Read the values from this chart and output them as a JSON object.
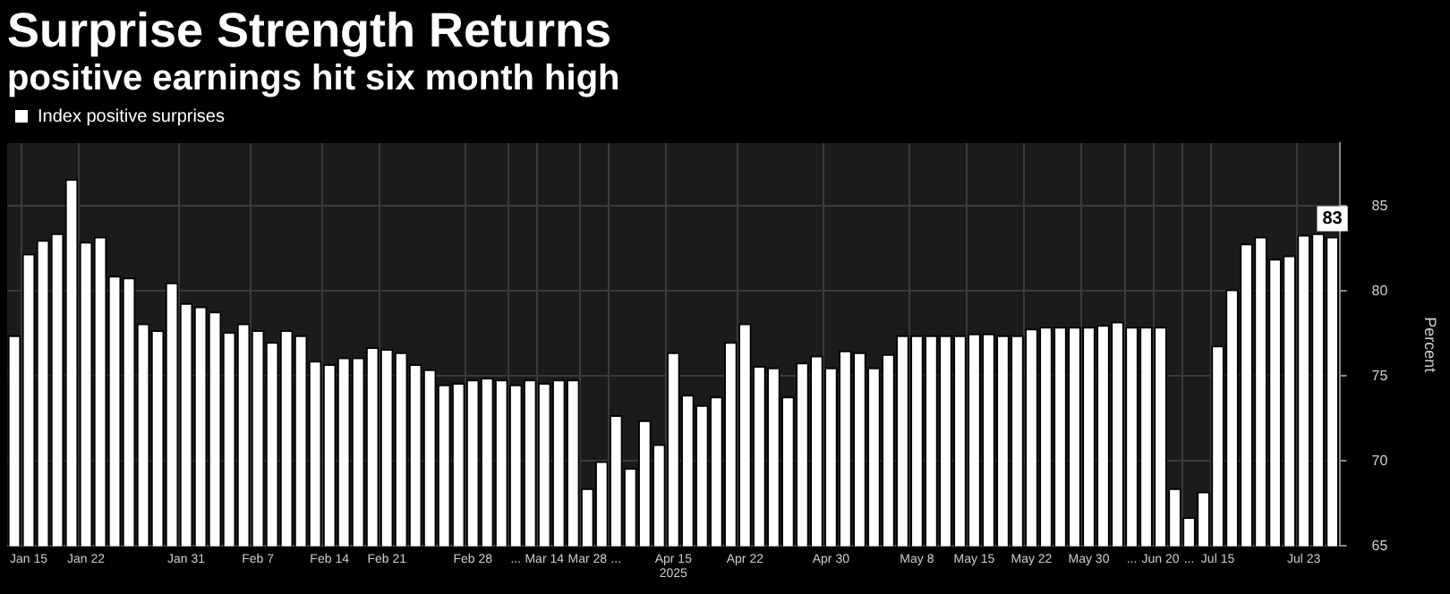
{
  "chart_data": {
    "type": "bar",
    "title": "Surprise Strength Returns",
    "subtitle": "positive earnings hit six month high",
    "ylabel": "Percent",
    "categories": [
      null,
      "Jan 15",
      null,
      null,
      null,
      "Jan 22",
      null,
      null,
      null,
      null,
      null,
      null,
      "Jan 31",
      null,
      null,
      null,
      null,
      "Feb 7",
      null,
      null,
      null,
      null,
      "Feb 14",
      null,
      null,
      null,
      "Feb 21",
      null,
      null,
      null,
      null,
      null,
      "Feb 28",
      null,
      null,
      "...",
      null,
      "Mar 14",
      null,
      null,
      "Mar 28",
      null,
      "...",
      null,
      null,
      null,
      "Apr 15\n2025",
      null,
      null,
      null,
      null,
      "Apr 22",
      null,
      null,
      null,
      null,
      null,
      "Apr 30",
      null,
      null,
      null,
      null,
      null,
      "May 8",
      null,
      null,
      null,
      "May 15",
      null,
      null,
      null,
      "May 22",
      null,
      null,
      null,
      "May 30",
      null,
      null,
      "...",
      null,
      "Jun 20",
      null,
      "...",
      null,
      "Jul 15",
      null,
      null,
      null,
      null,
      null,
      "Jul 23",
      null,
      null
    ],
    "series": [
      {
        "name": "Index positive surprises",
        "color": "#ffffff",
        "values": [
          77.4,
          82.2,
          83.0,
          83.4,
          86.6,
          82.9,
          83.2,
          80.9,
          80.8,
          78.1,
          77.7,
          80.5,
          79.3,
          79.1,
          78.8,
          77.6,
          78.1,
          77.7,
          77.0,
          77.7,
          77.4,
          75.9,
          75.7,
          76.1,
          76.1,
          76.7,
          76.6,
          76.4,
          75.7,
          75.4,
          74.5,
          74.6,
          74.8,
          74.9,
          74.8,
          74.5,
          74.8,
          74.6,
          74.8,
          74.8,
          68.4,
          70.0,
          72.7,
          69.6,
          72.4,
          71.0,
          76.4,
          73.9,
          73.3,
          73.8,
          77.0,
          78.1,
          75.6,
          75.5,
          73.8,
          75.8,
          76.2,
          75.5,
          76.5,
          76.4,
          75.5,
          76.3,
          77.4,
          77.4,
          77.4,
          77.4,
          77.4,
          77.5,
          77.5,
          77.4,
          77.4,
          77.8,
          77.9,
          77.9,
          77.9,
          77.9,
          78.0,
          78.2,
          77.9,
          77.9,
          77.9,
          68.4,
          66.7,
          68.2,
          76.8,
          80.1,
          82.8,
          83.2,
          81.9,
          82.1,
          83.3,
          83.4,
          83.2
        ],
        "value_labels": [
          null,
          null,
          null,
          null,
          null,
          null,
          null,
          null,
          null,
          null,
          null,
          null,
          null,
          null,
          null,
          null,
          null,
          null,
          null,
          null,
          null,
          null,
          null,
          null,
          null,
          null,
          null,
          null,
          null,
          null,
          null,
          null,
          null,
          null,
          null,
          null,
          null,
          null,
          null,
          null,
          null,
          null,
          null,
          null,
          null,
          null,
          null,
          null,
          null,
          null,
          null,
          null,
          null,
          null,
          null,
          null,
          null,
          null,
          null,
          null,
          null,
          null,
          null,
          null,
          null,
          null,
          null,
          null,
          null,
          null,
          null,
          null,
          null,
          null,
          null,
          null,
          null,
          null,
          null,
          null,
          null,
          null,
          null,
          null,
          null,
          null,
          null,
          null,
          null,
          null,
          null,
          null,
          "83"
        ]
      }
    ],
    "ylim": [
      65,
      88.7
    ],
    "yticks": [
      65,
      70,
      75,
      80,
      85
    ],
    "grid": true,
    "legend": "top left"
  }
}
